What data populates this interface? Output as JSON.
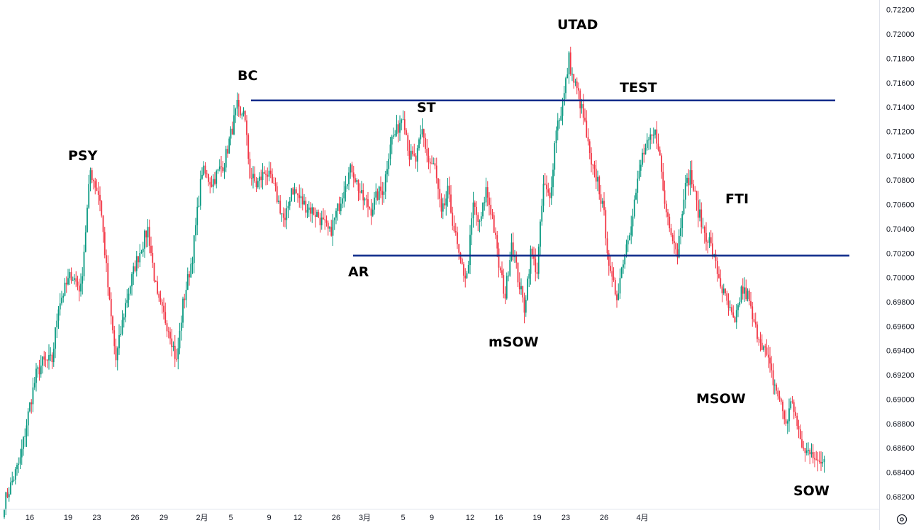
{
  "chart_data": {
    "type": "candlestick",
    "title": "",
    "ylim": [
      0.681,
      0.7228
    ],
    "y_ticks": [
      "0.72200",
      "0.72000",
      "0.71800",
      "0.71600",
      "0.71400",
      "0.71200",
      "0.71000",
      "0.70800",
      "0.70600",
      "0.70400",
      "0.70200",
      "0.70000",
      "0.69800",
      "0.69600",
      "0.69400",
      "0.69200",
      "0.69000",
      "0.68800",
      "0.68600",
      "0.68400",
      "0.68200"
    ],
    "x_ticks": [
      "26",
      "29",
      "2月",
      "5",
      "9",
      "12",
      "16",
      "19",
      "23",
      "26",
      "3月",
      "5",
      "9",
      "12",
      "16",
      "19",
      "23",
      "26",
      "4月"
    ],
    "colors": {
      "up": "#089981",
      "down": "#F23645",
      "level": "#0D2A8A",
      "text": "#131722",
      "grid": "#E0E3EB"
    },
    "levels": [
      {
        "name": "resistance",
        "value": 0.71455
      },
      {
        "name": "support",
        "value": 0.7018
      }
    ],
    "annotations": [
      {
        "text": "PSY",
        "x": "29",
        "y": 0.7094
      },
      {
        "text": "BC",
        "x": "12",
        "y": 0.7148
      },
      {
        "text": "AR",
        "x": "20",
        "y": 0.7016
      },
      {
        "text": "ST",
        "x": "26",
        "y": 0.7138
      },
      {
        "text": "mSOW",
        "x": "4",
        "y": 0.6946
      },
      {
        "text": "UTAD",
        "x": "11",
        "y": 0.7188
      },
      {
        "text": "TEST",
        "x": "13",
        "y": 0.716
      },
      {
        "text": "FTI",
        "x": "24",
        "y": 0.7066
      },
      {
        "text": "MSOW",
        "x": "23",
        "y": 0.691
      },
      {
        "text": "SOW",
        "x": "28",
        "y": 0.6832
      }
    ],
    "anchors": [
      [
        0,
        0.6815
      ],
      [
        10,
        0.685
      ],
      [
        16,
        0.6895
      ],
      [
        20,
        0.692
      ],
      [
        24,
        0.693
      ],
      [
        30,
        0.6932
      ],
      [
        34,
        0.6978
      ],
      [
        42,
        0.7003
      ],
      [
        48,
        0.699
      ],
      [
        54,
        0.7088
      ],
      [
        60,
        0.7065
      ],
      [
        66,
        0.6978
      ],
      [
        70,
        0.6932
      ],
      [
        76,
        0.6978
      ],
      [
        82,
        0.701
      ],
      [
        90,
        0.704
      ],
      [
        96,
        0.6982
      ],
      [
        104,
        0.6955
      ],
      [
        108,
        0.693
      ],
      [
        112,
        0.6978
      ],
      [
        118,
        0.7018
      ],
      [
        124,
        0.7088
      ],
      [
        130,
        0.7078
      ],
      [
        138,
        0.7095
      ],
      [
        146,
        0.714
      ],
      [
        148,
        0.713
      ],
      [
        150,
        0.714
      ],
      [
        154,
        0.7085
      ],
      [
        158,
        0.7076
      ],
      [
        164,
        0.7088
      ],
      [
        170,
        0.707
      ],
      [
        176,
        0.7044
      ],
      [
        180,
        0.7074
      ],
      [
        188,
        0.706
      ],
      [
        196,
        0.7052
      ],
      [
        204,
        0.7036
      ],
      [
        210,
        0.706
      ],
      [
        214,
        0.708
      ],
      [
        218,
        0.709
      ],
      [
        224,
        0.7066
      ],
      [
        230,
        0.7056
      ],
      [
        234,
        0.7068
      ],
      [
        238,
        0.7074
      ],
      [
        242,
        0.7112
      ],
      [
        246,
        0.712
      ],
      [
        250,
        0.7136
      ],
      [
        254,
        0.71
      ],
      [
        258,
        0.7096
      ],
      [
        262,
        0.712
      ],
      [
        266,
        0.7095
      ],
      [
        270,
        0.709
      ],
      [
        274,
        0.705
      ],
      [
        278,
        0.707
      ],
      [
        282,
        0.704
      ],
      [
        286,
        0.701
      ],
      [
        290,
        0.7
      ],
      [
        294,
        0.706
      ],
      [
        298,
        0.7042
      ],
      [
        302,
        0.7072
      ],
      [
        306,
        0.705
      ],
      [
        310,
        0.701
      ],
      [
        314,
        0.6985
      ],
      [
        318,
        0.703
      ],
      [
        322,
        0.7
      ],
      [
        326,
        0.6975
      ],
      [
        330,
        0.702
      ],
      [
        334,
        0.7005
      ],
      [
        338,
        0.7076
      ],
      [
        342,
        0.7064
      ],
      [
        346,
        0.7124
      ],
      [
        350,
        0.714
      ],
      [
        354,
        0.718
      ],
      [
        356,
        0.7165
      ],
      [
        360,
        0.715
      ],
      [
        364,
        0.7125
      ],
      [
        368,
        0.709
      ],
      [
        372,
        0.708
      ],
      [
        376,
        0.705
      ],
      [
        380,
        0.7
      ],
      [
        384,
        0.6985
      ],
      [
        388,
        0.7015
      ],
      [
        392,
        0.704
      ],
      [
        396,
        0.707
      ],
      [
        400,
        0.71
      ],
      [
        404,
        0.711
      ],
      [
        408,
        0.7118
      ],
      [
        410,
        0.711
      ],
      [
        414,
        0.706
      ],
      [
        418,
        0.704
      ],
      [
        422,
        0.702
      ],
      [
        426,
        0.707
      ],
      [
        430,
        0.7085
      ],
      [
        434,
        0.706
      ],
      [
        438,
        0.704
      ],
      [
        442,
        0.703
      ],
      [
        446,
        0.701
      ],
      [
        450,
        0.699
      ],
      [
        454,
        0.6975
      ],
      [
        458,
        0.696
      ],
      [
        462,
        0.699
      ],
      [
        466,
        0.6985
      ],
      [
        470,
        0.696
      ],
      [
        474,
        0.695
      ],
      [
        478,
        0.6935
      ],
      [
        482,
        0.6915
      ],
      [
        486,
        0.69
      ],
      [
        490,
        0.688
      ],
      [
        494,
        0.69
      ],
      [
        498,
        0.687
      ],
      [
        502,
        0.6855
      ],
      [
        506,
        0.686
      ],
      [
        510,
        0.6845
      ],
      [
        514,
        0.6852
      ]
    ],
    "x_tick_index": {
      "26": 16,
      "29": 40,
      "2月": 58,
      "5": 82,
      "9": 100,
      "12": 124,
      "16": 142,
      "19": 166,
      "23": 184,
      "26b": 208,
      "3月": 226,
      "5b": 250,
      "9b": 268,
      "12b": 292,
      "16b": 310,
      "19b": 334,
      "23b": 352,
      "26c": 376,
      "4月": 400
    }
  }
}
